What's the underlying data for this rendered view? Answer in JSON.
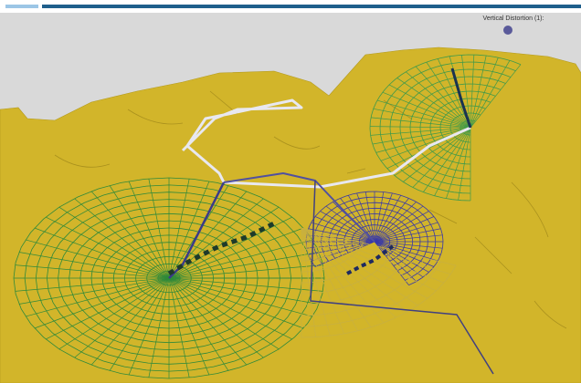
{
  "viewport": {
    "label": "Vertical Distortion (1):"
  }
}
